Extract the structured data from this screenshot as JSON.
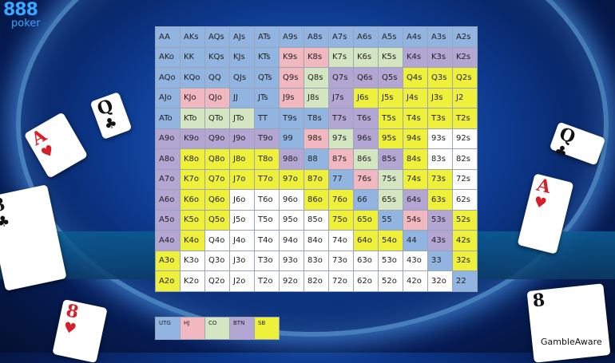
{
  "brand": {
    "number": "888",
    "word": "poker"
  },
  "footer": {
    "gamble_aware": "GambleAware"
  },
  "colors": {
    "UTG": "#92b4e0",
    "HJ": "#f2b8bf",
    "CO": "#d4e6c1",
    "BTN": "#b3a6d2",
    "SB": "#eef03a",
    "F": "#ffffff"
  },
  "legend": [
    {
      "label": "UTG",
      "pos": "UTG"
    },
    {
      "label": "HJ",
      "pos": "HJ"
    },
    {
      "label": "CO",
      "pos": "CO"
    },
    {
      "label": "BTN",
      "pos": "BTN"
    },
    {
      "label": "SB",
      "pos": "SB"
    }
  ],
  "cards": [
    {
      "rank": "Q",
      "suit": "♣",
      "color": "blk"
    },
    {
      "rank": "A",
      "suit": "♥",
      "color": "red"
    },
    {
      "rank": "8",
      "suit": "♣",
      "color": "blk"
    },
    {
      "rank": "8",
      "suit": "♥",
      "color": "red"
    },
    {
      "rank": "Q",
      "suit": "♣",
      "color": "blk"
    },
    {
      "rank": "A",
      "suit": "♥",
      "color": "red"
    },
    {
      "rank": "8",
      "suit": "",
      "color": "blk"
    }
  ],
  "grid": [
    [
      [
        "AA",
        "UTG"
      ],
      [
        "AKs",
        "UTG"
      ],
      [
        "AQs",
        "UTG"
      ],
      [
        "AJs",
        "UTG"
      ],
      [
        "ATs",
        "UTG"
      ],
      [
        "A9s",
        "UTG"
      ],
      [
        "A8s",
        "UTG"
      ],
      [
        "A7s",
        "UTG"
      ],
      [
        "A6s",
        "UTG"
      ],
      [
        "A5s",
        "UTG"
      ],
      [
        "A4s",
        "UTG"
      ],
      [
        "A3s",
        "UTG"
      ],
      [
        "A2s",
        "UTG"
      ]
    ],
    [
      [
        "AKo",
        "UTG"
      ],
      [
        "KK",
        "UTG"
      ],
      [
        "KQs",
        "UTG"
      ],
      [
        "KJs",
        "UTG"
      ],
      [
        "KTs",
        "UTG"
      ],
      [
        "K9s",
        "HJ"
      ],
      [
        "K8s",
        "HJ"
      ],
      [
        "K7s",
        "CO"
      ],
      [
        "K6s",
        "CO"
      ],
      [
        "K5s",
        "CO"
      ],
      [
        "K4s",
        "BTN"
      ],
      [
        "K3s",
        "BTN"
      ],
      [
        "K2s",
        "BTN"
      ]
    ],
    [
      [
        "AQo",
        "UTG"
      ],
      [
        "KQo",
        "UTG"
      ],
      [
        "QQ",
        "UTG"
      ],
      [
        "QJs",
        "UTG"
      ],
      [
        "QTs",
        "UTG"
      ],
      [
        "Q9s",
        "HJ"
      ],
      [
        "Q8s",
        "CO"
      ],
      [
        "Q7s",
        "BTN"
      ],
      [
        "Q6s",
        "BTN"
      ],
      [
        "Q5s",
        "BTN"
      ],
      [
        "Q4s",
        "SB"
      ],
      [
        "Q3s",
        "SB"
      ],
      [
        "Q2s",
        "SB"
      ]
    ],
    [
      [
        "AJo",
        "UTG"
      ],
      [
        "KJo",
        "HJ"
      ],
      [
        "QJo",
        "HJ"
      ],
      [
        "JJ",
        "UTG"
      ],
      [
        "JTs",
        "UTG"
      ],
      [
        "J9s",
        "HJ"
      ],
      [
        "J8s",
        "CO"
      ],
      [
        "J7s",
        "BTN"
      ],
      [
        "J6s",
        "SB"
      ],
      [
        "J5s",
        "SB"
      ],
      [
        "J4s",
        "SB"
      ],
      [
        "J3s",
        "SB"
      ],
      [
        "J2",
        "SB"
      ]
    ],
    [
      [
        "ATo",
        "UTG"
      ],
      [
        "KTo",
        "CO"
      ],
      [
        "QTo",
        "CO"
      ],
      [
        "JTo",
        "CO"
      ],
      [
        "TT",
        "UTG"
      ],
      [
        "T9s",
        "UTG"
      ],
      [
        "T8s",
        "UTG"
      ],
      [
        "T7s",
        "BTN"
      ],
      [
        "T6s",
        "BTN"
      ],
      [
        "T5s",
        "SB"
      ],
      [
        "T4s",
        "SB"
      ],
      [
        "T3s",
        "SB"
      ],
      [
        "T2s",
        "SB"
      ]
    ],
    [
      [
        "A9o",
        "BTN"
      ],
      [
        "K9o",
        "BTN"
      ],
      [
        "Q9o",
        "BTN"
      ],
      [
        "J9o",
        "BTN"
      ],
      [
        "T9o",
        "BTN"
      ],
      [
        "99",
        "UTG"
      ],
      [
        "98s",
        "HJ"
      ],
      [
        "97s",
        "CO"
      ],
      [
        "96s",
        "BTN"
      ],
      [
        "95s",
        "SB"
      ],
      [
        "94s",
        "SB"
      ],
      [
        "93s",
        "F"
      ],
      [
        "92s",
        "F"
      ]
    ],
    [
      [
        "A8o",
        "BTN"
      ],
      [
        "K8o",
        "SB"
      ],
      [
        "Q8o",
        "SB"
      ],
      [
        "J8o",
        "SB"
      ],
      [
        "T8o",
        "SB"
      ],
      [
        "98o",
        "BTN"
      ],
      [
        "88",
        "UTG"
      ],
      [
        "87s",
        "HJ"
      ],
      [
        "86s",
        "CO"
      ],
      [
        "85s",
        "BTN"
      ],
      [
        "84s",
        "SB"
      ],
      [
        "83s",
        "F"
      ],
      [
        "82s",
        "F"
      ]
    ],
    [
      [
        "A7o",
        "BTN"
      ],
      [
        "K7o",
        "SB"
      ],
      [
        "Q7o",
        "SB"
      ],
      [
        "J7o",
        "SB"
      ],
      [
        "T7o",
        "SB"
      ],
      [
        "97o",
        "SB"
      ],
      [
        "87o",
        "SB"
      ],
      [
        "77",
        "UTG"
      ],
      [
        "76s",
        "HJ"
      ],
      [
        "75s",
        "CO"
      ],
      [
        "74s",
        "SB"
      ],
      [
        "73s",
        "SB"
      ],
      [
        "72s",
        "F"
      ]
    ],
    [
      [
        "A6o",
        "BTN"
      ],
      [
        "K6o",
        "SB"
      ],
      [
        "Q6o",
        "SB"
      ],
      [
        "J6o",
        "F"
      ],
      [
        "T6o",
        "F"
      ],
      [
        "96o",
        "F"
      ],
      [
        "86o",
        "SB"
      ],
      [
        "76o",
        "SB"
      ],
      [
        "66",
        "UTG"
      ],
      [
        "65s",
        "CO"
      ],
      [
        "64s",
        "BTN"
      ],
      [
        "63s",
        "SB"
      ],
      [
        "62s",
        "F"
      ]
    ],
    [
      [
        "A5o",
        "BTN"
      ],
      [
        "K5o",
        "SB"
      ],
      [
        "Q5o",
        "SB"
      ],
      [
        "J5o",
        "F"
      ],
      [
        "T5o",
        "F"
      ],
      [
        "95o",
        "F"
      ],
      [
        "85o",
        "F"
      ],
      [
        "75o",
        "SB"
      ],
      [
        "65o",
        "SB"
      ],
      [
        "55",
        "UTG"
      ],
      [
        "54s",
        "HJ"
      ],
      [
        "53s",
        "BTN"
      ],
      [
        "52s",
        "SB"
      ]
    ],
    [
      [
        "A4o",
        "BTN"
      ],
      [
        "K4o",
        "SB"
      ],
      [
        "Q4o",
        "F"
      ],
      [
        "J4o",
        "F"
      ],
      [
        "T4o",
        "F"
      ],
      [
        "94o",
        "F"
      ],
      [
        "84o",
        "F"
      ],
      [
        "74o",
        "F"
      ],
      [
        "64o",
        "SB"
      ],
      [
        "54o",
        "SB"
      ],
      [
        "44",
        "UTG"
      ],
      [
        "43s",
        "BTN"
      ],
      [
        "42s",
        "SB"
      ]
    ],
    [
      [
        "A3o",
        "SB"
      ],
      [
        "K3o",
        "F"
      ],
      [
        "Q3o",
        "F"
      ],
      [
        "J3o",
        "F"
      ],
      [
        "T3o",
        "F"
      ],
      [
        "93o",
        "F"
      ],
      [
        "83o",
        "F"
      ],
      [
        "73o",
        "F"
      ],
      [
        "63o",
        "F"
      ],
      [
        "53o",
        "F"
      ],
      [
        "43o",
        "F"
      ],
      [
        "33",
        "UTG"
      ],
      [
        "32s",
        "SB"
      ]
    ],
    [
      [
        "A2o",
        "SB"
      ],
      [
        "K2o",
        "F"
      ],
      [
        "Q2o",
        "F"
      ],
      [
        "J2o",
        "F"
      ],
      [
        "T2o",
        "F"
      ],
      [
        "92o",
        "F"
      ],
      [
        "82o",
        "F"
      ],
      [
        "72o",
        "F"
      ],
      [
        "62o",
        "F"
      ],
      [
        "52o",
        "F"
      ],
      [
        "42o",
        "F"
      ],
      [
        "32o",
        "F"
      ],
      [
        "22",
        "UTG"
      ]
    ]
  ]
}
